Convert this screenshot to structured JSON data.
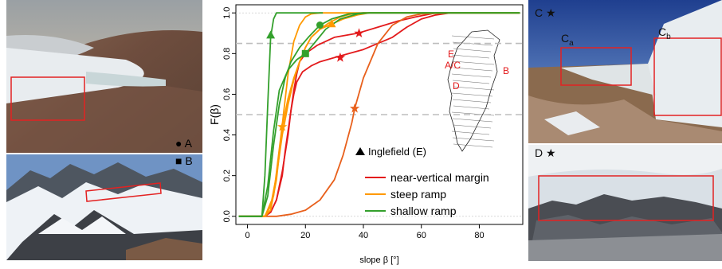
{
  "panels": {
    "a": {
      "label": "A",
      "marker": "circle"
    },
    "b": {
      "label": "B",
      "marker": "square"
    },
    "c": {
      "label": "C",
      "marker": "star",
      "sub1": "C",
      "sub1_sub": "a",
      "sub2": "C",
      "sub2_sub": "b"
    },
    "d": {
      "label": "D",
      "marker": "star"
    }
  },
  "colors": {
    "near_vertical": "#e31a1c",
    "steep": "#ff9900",
    "shallow": "#33a02c",
    "dark_orange": "#e8601c",
    "frame_red": "#e32222"
  },
  "chart_data": {
    "type": "line",
    "xlabel": "slope β [°]",
    "ylabel": "F(β)",
    "xlim": [
      -4,
      95
    ],
    "ylim": [
      -0.04,
      1.04
    ],
    "xticks": [
      0,
      20,
      40,
      60,
      80
    ],
    "yticks": [
      0.0,
      0.2,
      0.4,
      0.6,
      0.8,
      1.0
    ],
    "hlines": [
      0.0,
      0.5,
      0.85,
      1.0
    ],
    "legend": {
      "placement": "bottom-right",
      "entries": [
        "near-vertical margin",
        "steep ramp",
        "shallow ramp"
      ]
    },
    "annotation": "Inglefield (E)",
    "map_labels": [
      "E",
      "A/C",
      "D",
      "B"
    ],
    "series": [
      {
        "name": "near-vertical margin",
        "color": "#e31a1c",
        "marker": "circle",
        "points": [
          [
            -3,
            0
          ],
          [
            6,
            0
          ],
          [
            8,
            0.02
          ],
          [
            10,
            0.08
          ],
          [
            12,
            0.2
          ],
          [
            13,
            0.32
          ],
          [
            14,
            0.42
          ],
          [
            15,
            0.52
          ],
          [
            16,
            0.6
          ],
          [
            17,
            0.66
          ],
          [
            19,
            0.71
          ],
          [
            22,
            0.74
          ],
          [
            25,
            0.76
          ],
          [
            30,
            0.78
          ],
          [
            35,
            0.8
          ],
          [
            40,
            0.82
          ],
          [
            45,
            0.85
          ],
          [
            50,
            0.88
          ],
          [
            55,
            0.93
          ],
          [
            60,
            0.97
          ],
          [
            65,
            0.99
          ],
          [
            70,
            1.0
          ],
          [
            94,
            1.0
          ]
        ],
        "markers": [
          {
            "shape": "star",
            "x": 32,
            "y": 0.78
          }
        ]
      },
      {
        "name": "near-vertical margin",
        "color": "#e31a1c",
        "marker": "square",
        "points": [
          [
            -3,
            0
          ],
          [
            6,
            0
          ],
          [
            8,
            0.02
          ],
          [
            10,
            0.08
          ],
          [
            12,
            0.22
          ],
          [
            14,
            0.4
          ],
          [
            15,
            0.52
          ],
          [
            16,
            0.62
          ],
          [
            17,
            0.7
          ],
          [
            18,
            0.76
          ],
          [
            20,
            0.8
          ],
          [
            24,
            0.84
          ],
          [
            30,
            0.88
          ],
          [
            38,
            0.9
          ],
          [
            45,
            0.93
          ],
          [
            52,
            0.96
          ],
          [
            58,
            0.98
          ],
          [
            65,
            1.0
          ],
          [
            94,
            1.0
          ]
        ],
        "markers": [
          {
            "shape": "star",
            "x": 38.5,
            "y": 0.9
          }
        ]
      },
      {
        "name": "near-vertical margin",
        "color": "#e8601c",
        "marker": "star",
        "points": [
          [
            -3,
            0
          ],
          [
            10,
            0
          ],
          [
            15,
            0.01
          ],
          [
            20,
            0.03
          ],
          [
            25,
            0.08
          ],
          [
            30,
            0.18
          ],
          [
            33,
            0.3
          ],
          [
            36,
            0.46
          ],
          [
            37,
            0.53
          ],
          [
            40,
            0.68
          ],
          [
            45,
            0.85
          ],
          [
            50,
            0.94
          ],
          [
            55,
            0.98
          ],
          [
            60,
            0.995
          ],
          [
            70,
            1.0
          ],
          [
            94,
            1.0
          ]
        ],
        "markers": [
          {
            "shape": "star",
            "x": 37,
            "y": 0.53
          }
        ]
      },
      {
        "name": "steep ramp",
        "color": "#ff9900",
        "marker": "star",
        "points": [
          [
            -3,
            0
          ],
          [
            6,
            0
          ],
          [
            8,
            0.03
          ],
          [
            10,
            0.18
          ],
          [
            12,
            0.44
          ],
          [
            14,
            0.58
          ],
          [
            16,
            0.68
          ],
          [
            18,
            0.76
          ],
          [
            20,
            0.83
          ],
          [
            22,
            0.88
          ],
          [
            25,
            0.92
          ],
          [
            28,
            0.95
          ],
          [
            32,
            0.98
          ],
          [
            36,
            0.995
          ],
          [
            40,
            1.0
          ],
          [
            94,
            1.0
          ]
        ],
        "markers": [
          {
            "shape": "star",
            "x": 12,
            "y": 0.44
          }
        ]
      },
      {
        "name": "steep ramp",
        "color": "#ff9900",
        "marker": "triangle",
        "points": [
          [
            -3,
            0
          ],
          [
            6,
            0
          ],
          [
            8,
            0.05
          ],
          [
            10,
            0.2
          ],
          [
            12,
            0.4
          ],
          [
            14,
            0.55
          ],
          [
            16,
            0.67
          ],
          [
            18,
            0.76
          ],
          [
            20,
            0.83
          ],
          [
            22,
            0.88
          ],
          [
            25,
            0.92
          ],
          [
            29,
            0.945
          ],
          [
            33,
            0.97
          ],
          [
            38,
            0.99
          ],
          [
            42,
            1.0
          ],
          [
            94,
            1.0
          ]
        ],
        "markers": [
          {
            "shape": "triangle",
            "x": 29,
            "y": 0.945
          }
        ]
      },
      {
        "name": "steep ramp",
        "color": "#ff9900",
        "marker": "none",
        "points": [
          [
            -3,
            0
          ],
          [
            6,
            0
          ],
          [
            9,
            0.1
          ],
          [
            12,
            0.45
          ],
          [
            14,
            0.7
          ],
          [
            16,
            0.86
          ],
          [
            18,
            0.94
          ],
          [
            20,
            0.98
          ],
          [
            22,
            0.995
          ],
          [
            25,
            1.0
          ],
          [
            94,
            1.0
          ]
        ],
        "markers": []
      },
      {
        "name": "shallow ramp",
        "color": "#33a02c",
        "marker": "triangle",
        "points": [
          [
            -3,
            0
          ],
          [
            5,
            0
          ],
          [
            6,
            0.2
          ],
          [
            7,
            0.55
          ],
          [
            8,
            0.88
          ],
          [
            9,
            0.97
          ],
          [
            10,
            1.0
          ],
          [
            26,
            1.0
          ]
        ],
        "markers": [
          {
            "shape": "triangle",
            "x": 8,
            "y": 0.89
          }
        ]
      },
      {
        "name": "shallow ramp",
        "color": "#33a02c",
        "marker": "circle",
        "points": [
          [
            -3,
            0
          ],
          [
            5,
            0
          ],
          [
            7,
            0.1
          ],
          [
            9,
            0.35
          ],
          [
            11,
            0.55
          ],
          [
            13,
            0.68
          ],
          [
            15,
            0.76
          ],
          [
            18,
            0.83
          ],
          [
            21,
            0.88
          ],
          [
            25,
            0.94
          ],
          [
            29,
            0.97
          ],
          [
            35,
            0.995
          ],
          [
            40,
            1.0
          ],
          [
            94,
            1.0
          ]
        ],
        "markers": [
          {
            "shape": "circle",
            "x": 25,
            "y": 0.94
          }
        ]
      },
      {
        "name": "shallow ramp",
        "color": "#33a02c",
        "marker": "square",
        "points": [
          [
            -3,
            0
          ],
          [
            5,
            0
          ],
          [
            7,
            0.15
          ],
          [
            9,
            0.42
          ],
          [
            11,
            0.62
          ],
          [
            14,
            0.72
          ],
          [
            17,
            0.77
          ],
          [
            20,
            0.8
          ],
          [
            23,
            0.85
          ],
          [
            27,
            0.92
          ],
          [
            32,
            0.97
          ],
          [
            38,
            0.995
          ],
          [
            42,
            1.0
          ],
          [
            94,
            1.0
          ]
        ],
        "markers": [
          {
            "shape": "square",
            "x": 20,
            "y": 0.8
          }
        ]
      }
    ]
  }
}
